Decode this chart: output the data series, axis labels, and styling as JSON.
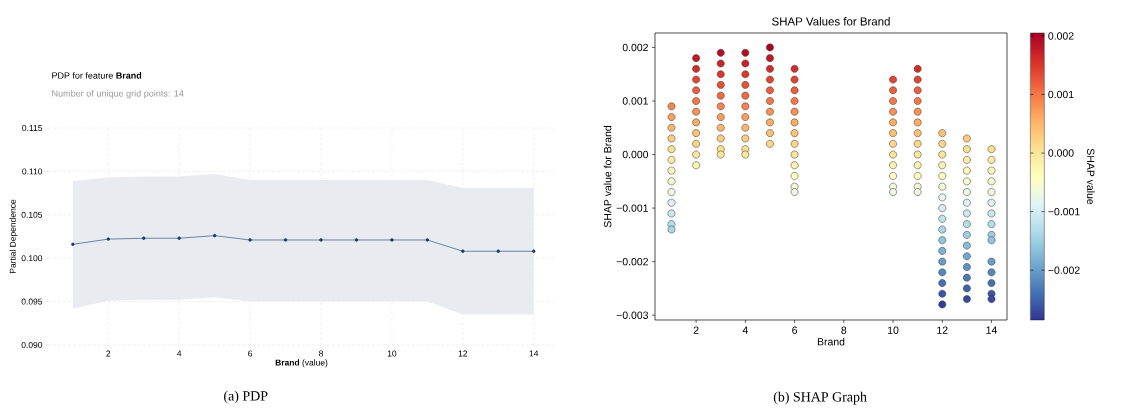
{
  "chart_data": [
    {
      "type": "line",
      "title": "PDP for feature **Brand**",
      "subtitle": "Number of unique grid points: 14",
      "xlabel": "**Brand** (value)",
      "ylabel": "Partial Dependence",
      "annotations": [
        "(a)  PDP"
      ],
      "x": [
        1,
        2,
        3,
        4,
        5,
        6,
        7,
        8,
        9,
        10,
        11,
        12,
        13,
        14
      ],
      "series": [
        {
          "color": "#1a3a6e",
          "values": [
            0.1016,
            0.1022,
            0.1023,
            0.1023,
            0.1026,
            0.1021,
            0.1021,
            0.1021,
            0.1021,
            0.1021,
            0.1021,
            0.1008,
            0.1008,
            0.1008
          ],
          "lower": [
            0.0942,
            0.0951,
            0.0952,
            0.0952,
            0.0955,
            0.095,
            0.095,
            0.095,
            0.095,
            0.095,
            0.095,
            0.0935,
            0.0935,
            0.0935
          ],
          "upper": [
            0.1089,
            0.1093,
            0.1094,
            0.1094,
            0.1097,
            0.109,
            0.109,
            0.109,
            0.109,
            0.109,
            0.109,
            0.1081,
            0.1081,
            0.1081
          ]
        }
      ],
      "xlim": [
        0.3,
        14.6
      ],
      "ylim": [
        0.09,
        0.115
      ],
      "xticks": [
        2,
        4,
        6,
        8,
        10,
        12,
        14
      ],
      "yticks": [
        {
          "value": 0.09,
          "label": "0.090"
        },
        {
          "value": 0.095,
          "label": "0.095"
        },
        {
          "value": 0.1,
          "label": "0.100"
        },
        {
          "value": 0.105,
          "label": "0.105"
        },
        {
          "value": 0.11,
          "label": "0.110"
        },
        {
          "value": 0.115,
          "label": "0.115"
        }
      ],
      "grid": true,
      "marker": "circle",
      "line_style": "solid"
    },
    {
      "type": "scatter",
      "title": "SHAP Values for Brand",
      "xlabel": "Brand",
      "ylabel": "SHAP value for Brand",
      "clabel": "SHAP value",
      "annotations": [
        "(b)  SHAP Graph"
      ],
      "series": [
        {
          "x": [
            1,
            1,
            1,
            1,
            1,
            1,
            1,
            1,
            1,
            1,
            1,
            1,
            1,
            2,
            2,
            2,
            2,
            2,
            2,
            2,
            2,
            2,
            2,
            2,
            3,
            3,
            3,
            3,
            3,
            3,
            3,
            3,
            3,
            3,
            3,
            4,
            4,
            4,
            4,
            4,
            4,
            4,
            4,
            4,
            4,
            4,
            5,
            5,
            5,
            5,
            5,
            5,
            5,
            5,
            5,
            5,
            6,
            6,
            6,
            6,
            6,
            6,
            6,
            6,
            6,
            6,
            6,
            6,
            6,
            10,
            10,
            10,
            10,
            10,
            10,
            10,
            10,
            10,
            10,
            10,
            10,
            11,
            11,
            11,
            11,
            11,
            11,
            11,
            11,
            11,
            11,
            11,
            11,
            11,
            12,
            12,
            12,
            12,
            12,
            12,
            12,
            12,
            12,
            12,
            12,
            12,
            12,
            12,
            12,
            12,
            12,
            13,
            13,
            13,
            13,
            13,
            13,
            13,
            13,
            13,
            13,
            13,
            13,
            13,
            13,
            13,
            13,
            14,
            14,
            14,
            14,
            14,
            14,
            14,
            14,
            14,
            14,
            14,
            14,
            14,
            14,
            14
          ],
          "values": [
            0.0009,
            0.0007,
            0.0005,
            0.0003,
            0.0001,
            -0.0001,
            -0.0003,
            -0.0005,
            -0.0007,
            -0.0009,
            -0.0011,
            -0.0013,
            -0.0014,
            0.0018,
            0.0016,
            0.0014,
            0.0012,
            0.001,
            0.0008,
            0.0006,
            0.0004,
            0.0002,
            0,
            -0.0002,
            0.0019,
            0.0017,
            0.0015,
            0.0013,
            0.0011,
            0.0009,
            0.0007,
            0.0005,
            0.0003,
            0.0001,
            0,
            0.0019,
            0.0017,
            0.0015,
            0.0013,
            0.0011,
            0.0009,
            0.0007,
            0.0005,
            0.0003,
            0.0001,
            0,
            0.002,
            0.0018,
            0.0016,
            0.0014,
            0.0012,
            0.001,
            0.0008,
            0.0006,
            0.0004,
            0.0002,
            0.0016,
            0.0014,
            0.0012,
            0.001,
            0.0008,
            0.0006,
            0.0004,
            0.0002,
            0,
            -0.0002,
            -0.0004,
            -0.0006,
            -0.0007,
            0.0014,
            0.0012,
            0.001,
            0.0008,
            0.0006,
            0.0004,
            0.0002,
            0,
            -0.0002,
            -0.0004,
            -0.0006,
            -0.0007,
            0.0016,
            0.0014,
            0.0012,
            0.001,
            0.0008,
            0.0006,
            0.0004,
            0.0002,
            0,
            -0.0002,
            -0.0004,
            -0.0006,
            -0.0007,
            0.0004,
            0.0002,
            0,
            -0.0002,
            -0.0004,
            -0.0006,
            -0.0008,
            -0.001,
            -0.0012,
            -0.0014,
            -0.0016,
            -0.0018,
            -0.002,
            -0.0022,
            -0.0024,
            -0.0026,
            -0.0028,
            0.0003,
            0.0001,
            -0.0001,
            -0.0003,
            -0.0005,
            -0.0007,
            -0.0009,
            -0.0011,
            -0.0013,
            -0.0015,
            -0.0017,
            -0.0019,
            -0.0021,
            -0.0023,
            -0.0025,
            -0.0027,
            0.0001,
            -0.0001,
            -0.0003,
            -0.0005,
            -0.0007,
            -0.0009,
            -0.0011,
            -0.0013,
            -0.0015,
            -0.0016,
            -0.002,
            -0.0022,
            -0.0024,
            -0.0026,
            -0.0027
          ],
          "cvalues": [
            0.0009,
            0.0007,
            0.0005,
            0.0003,
            0.0001,
            -0.0001,
            -0.0003,
            -0.0005,
            -0.0007,
            -0.0009,
            -0.0011,
            -0.0013,
            -0.0014,
            0.0018,
            0.0016,
            0.0014,
            0.0012,
            0.001,
            0.0008,
            0.0006,
            0.0004,
            0.0002,
            0,
            -0.0002,
            0.0019,
            0.0017,
            0.0015,
            0.0013,
            0.0011,
            0.0009,
            0.0007,
            0.0005,
            0.0003,
            0.0001,
            0,
            0.0019,
            0.0017,
            0.0015,
            0.0013,
            0.0011,
            0.0009,
            0.0007,
            0.0005,
            0.0003,
            0.0001,
            0,
            0.002,
            0.0018,
            0.0016,
            0.0014,
            0.0012,
            0.001,
            0.0008,
            0.0006,
            0.0004,
            0.0002,
            0.0016,
            0.0014,
            0.0012,
            0.001,
            0.0008,
            0.0006,
            0.0004,
            0.0002,
            0,
            -0.0002,
            -0.0004,
            -0.0006,
            -0.0007,
            0.0014,
            0.0012,
            0.001,
            0.0008,
            0.0006,
            0.0004,
            0.0002,
            0,
            -0.0002,
            -0.0004,
            -0.0006,
            -0.0007,
            0.0016,
            0.0014,
            0.0012,
            0.001,
            0.0008,
            0.0006,
            0.0004,
            0.0002,
            0,
            -0.0002,
            -0.0004,
            -0.0006,
            -0.0007,
            0.0004,
            0.0002,
            0,
            -0.0002,
            -0.0004,
            -0.0006,
            -0.0008,
            -0.001,
            -0.0012,
            -0.0014,
            -0.0016,
            -0.0018,
            -0.002,
            -0.0022,
            -0.0024,
            -0.0026,
            -0.0028,
            0.0003,
            0.0001,
            -0.0001,
            -0.0003,
            -0.0005,
            -0.0007,
            -0.0009,
            -0.0011,
            -0.0013,
            -0.0015,
            -0.0017,
            -0.0019,
            -0.0021,
            -0.0023,
            -0.0025,
            -0.0027,
            0.0001,
            -0.0001,
            -0.0003,
            -0.0005,
            -0.0007,
            -0.0009,
            -0.0011,
            -0.0013,
            -0.0015,
            -0.0016,
            -0.002,
            -0.0022,
            -0.0024,
            -0.0026,
            -0.0027
          ]
        }
      ],
      "xlim": [
        0.33,
        14.63
      ],
      "ylim": [
        -0.00309,
        0.00227
      ],
      "xticks": [
        2,
        4,
        6,
        8,
        10,
        12,
        14
      ],
      "yticks": [
        {
          "value": -0.003,
          "label": "−0.003"
        },
        {
          "value": -0.002,
          "label": "−0.002"
        },
        {
          "value": -0.001,
          "label": "−0.001"
        },
        {
          "value": 0,
          "label": "0.000"
        },
        {
          "value": 0.001,
          "label": "0.001"
        },
        {
          "value": 0.002,
          "label": "0.002"
        }
      ],
      "clim": [
        -0.00285,
        0.00205
      ],
      "cticks": [
        {
          "value": -0.002,
          "label": "−0.002"
        },
        {
          "value": -0.001,
          "label": "−0.001"
        },
        {
          "value": 0,
          "label": "0.000"
        },
        {
          "value": 0.001,
          "label": "0.001"
        },
        {
          "value": 0.002,
          "label": "0.002"
        }
      ],
      "marker": "circle"
    }
  ]
}
